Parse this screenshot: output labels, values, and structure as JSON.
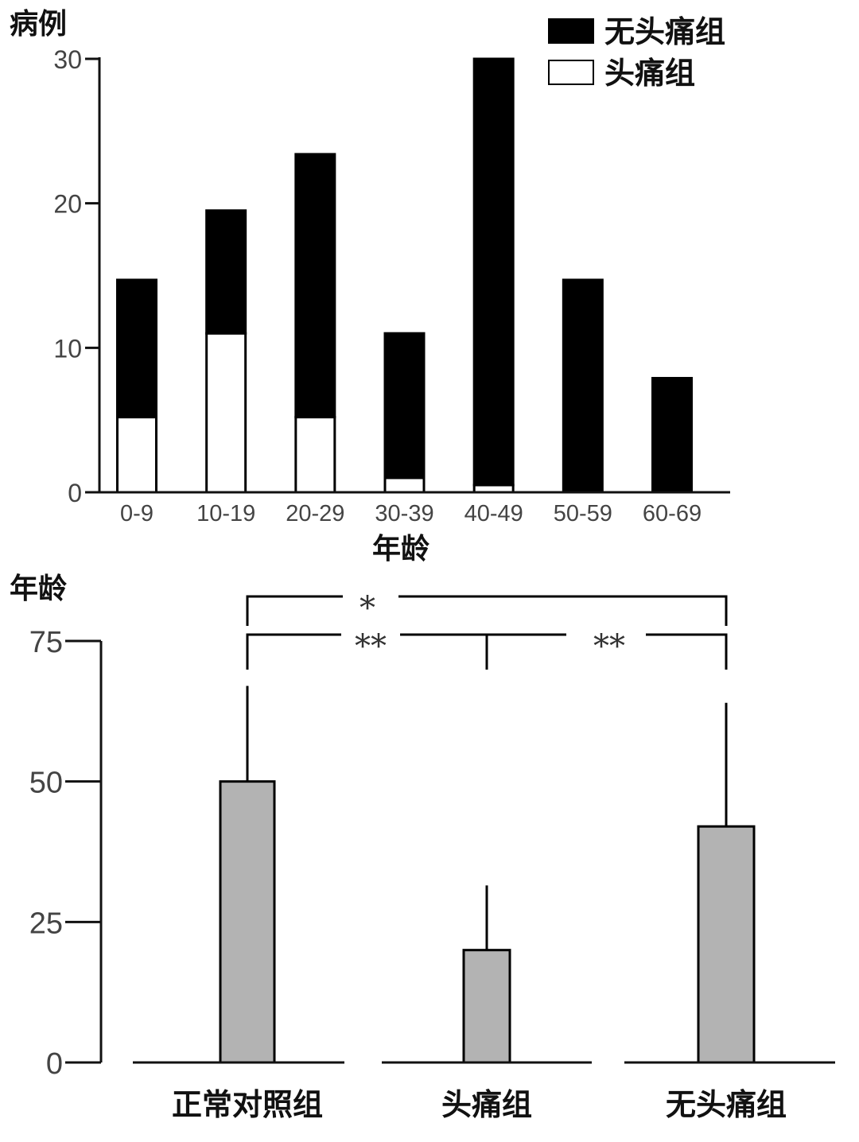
{
  "chart_data": [
    {
      "type": "bar",
      "stacked": true,
      "title": "",
      "xlabel": "年龄",
      "ylabel": "病例",
      "categories": [
        "0-9",
        "10-19",
        "20-29",
        "30-39",
        "40-49",
        "50-59",
        "60-69"
      ],
      "ylim": [
        0,
        30
      ],
      "yticks": [
        0,
        10,
        20,
        30
      ],
      "legend_position": "top-right",
      "series": [
        {
          "name": "头痛组",
          "color": "#ffffff",
          "values": [
            5.2,
            11,
            5.2,
            1,
            0.5,
            0,
            0
          ]
        },
        {
          "name": "无头痛组",
          "color": "#000000",
          "values": [
            9.5,
            8.5,
            18.2,
            10,
            29.5,
            14.7,
            7.9
          ]
        }
      ],
      "legend": [
        {
          "name": "无头痛组",
          "color": "#000000"
        },
        {
          "name": "头痛组",
          "color": "#ffffff"
        }
      ],
      "grid": false
    },
    {
      "type": "bar",
      "title": "",
      "xlabel": "",
      "ylabel": "年龄",
      "categories": [
        "正常对照组",
        "头痛组",
        "无头痛组"
      ],
      "values": [
        50,
        20,
        42
      ],
      "error_upper": [
        67,
        31.5,
        64
      ],
      "color": "#b3b3b3",
      "ylim": [
        0,
        75
      ],
      "yticks": [
        0,
        25,
        50,
        75
      ],
      "significance": [
        {
          "from": "正常对照组",
          "to": "无头痛组",
          "label": "*"
        },
        {
          "from": "正常对照组",
          "to": "头痛组",
          "label": "**"
        },
        {
          "from": "头痛组",
          "to": "无头痛组",
          "label": "**"
        }
      ],
      "grid": false
    }
  ]
}
